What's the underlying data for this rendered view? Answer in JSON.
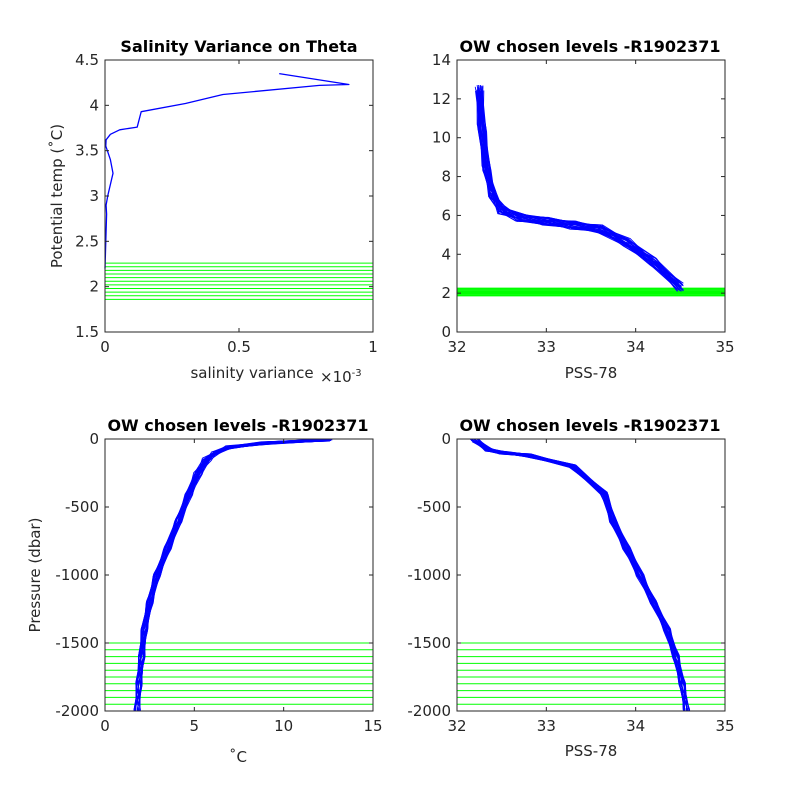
{
  "figure": {
    "colors": {
      "profile": "#0000ff",
      "levels": "#00ff00",
      "axes": "#262626"
    }
  },
  "chart_data": [
    {
      "type": "line",
      "title": "Salinity Variance on Theta",
      "xlabel": "salinity variance",
      "x_multiplier": "×10",
      "x_multiplier_exp": "-3",
      "ylabel": "Potential temp (˚C)",
      "xlim": [
        0,
        1
      ],
      "ylim": [
        1.5,
        4.5
      ],
      "xticks": [
        "0",
        "0.5",
        "1"
      ],
      "yticks": [
        "1.5",
        "2",
        "2.5",
        "3",
        "3.5",
        "4",
        "4.5"
      ],
      "series": [
        {
          "x": [
            0.0,
            0.003,
            0.006,
            0.004,
            0.01,
            0.03,
            0.02,
            0.003,
            0.004,
            0.02,
            0.055,
            0.12,
            0.135,
            0.3,
            0.44,
            0.8,
            0.91,
            0.65
          ],
          "y": [
            2.2,
            2.5,
            2.8,
            2.9,
            3.0,
            3.25,
            3.4,
            3.55,
            3.62,
            3.68,
            3.73,
            3.76,
            3.93,
            4.02,
            4.12,
            4.22,
            4.23,
            4.35
          ]
        }
      ],
      "hlines": [
        1.86,
        1.9,
        1.94,
        1.98,
        2.02,
        2.06,
        2.1,
        2.14,
        2.18,
        2.22,
        2.26
      ]
    },
    {
      "type": "scatter",
      "title": "OW chosen levels -R1902371",
      "xlabel": "PSS-78",
      "ylabel": "",
      "xlim": [
        32,
        35
      ],
      "ylim": [
        0,
        14
      ],
      "xticks": [
        "32",
        "33",
        "34",
        "35"
      ],
      "yticks": [
        "0",
        "2",
        "4",
        "6",
        "8",
        "10",
        "12",
        "14"
      ],
      "profile_bundle": {
        "count": 28,
        "base_x": [
          34.5,
          34.2,
          33.9,
          33.6,
          33.3,
          33.0,
          32.7,
          32.5,
          32.4,
          32.33,
          32.28,
          32.25
        ],
        "base_y": [
          2.3,
          3.6,
          4.6,
          5.3,
          5.5,
          5.7,
          5.9,
          6.3,
          7.1,
          8.5,
          10.5,
          12.5
        ]
      },
      "hlines": [
        1.86,
        1.9,
        1.94,
        1.98,
        2.02,
        2.06,
        2.1,
        2.14,
        2.18,
        2.22,
        2.26
      ]
    },
    {
      "type": "line",
      "title": "OW chosen levels -R1902371",
      "xlabel": "˚C",
      "ylabel": "Pressure (dbar)",
      "xlim": [
        0,
        15
      ],
      "ylim": [
        -2000,
        0
      ],
      "xticks": [
        "0",
        "5",
        "10",
        "15"
      ],
      "yticks": [
        "-2000",
        "-1500",
        "-1000",
        "-500",
        "0"
      ],
      "profile_bundle": {
        "count": 28,
        "base_x": [
          1.8,
          1.9,
          2.05,
          2.2,
          2.5,
          2.9,
          3.5,
          4.1,
          4.7,
          5.2,
          5.7,
          6.2,
          7.0,
          9.0,
          12.5
        ],
        "base_y": [
          -2000,
          -1800,
          -1600,
          -1400,
          -1200,
          -1000,
          -800,
          -600,
          -400,
          -250,
          -150,
          -100,
          -60,
          -30,
          -5
        ]
      },
      "hlines": [
        -1500,
        -1550,
        -1600,
        -1650,
        -1700,
        -1750,
        -1800,
        -1850,
        -1900,
        -1950
      ]
    },
    {
      "type": "line",
      "title": "OW chosen levels -R1902371",
      "xlabel": "PSS-78",
      "ylabel": "",
      "xlim": [
        32,
        35
      ],
      "ylim": [
        -2000,
        0
      ],
      "xticks": [
        "32",
        "33",
        "34",
        "35"
      ],
      "yticks": [
        "-2000",
        "-1500",
        "-1000",
        "-500",
        "0"
      ],
      "profile_bundle": {
        "count": 28,
        "base_x": [
          34.57,
          34.52,
          34.45,
          34.35,
          34.2,
          34.05,
          33.9,
          33.75,
          33.65,
          33.3,
          32.8,
          32.5,
          32.35,
          32.2
        ],
        "base_y": [
          -2000,
          -1800,
          -1600,
          -1400,
          -1200,
          -1000,
          -800,
          -600,
          -400,
          -200,
          -120,
          -100,
          -80,
          -10
        ]
      },
      "hlines": [
        -1500,
        -1550,
        -1600,
        -1650,
        -1700,
        -1750,
        -1800,
        -1850,
        -1900,
        -1950
      ]
    }
  ]
}
